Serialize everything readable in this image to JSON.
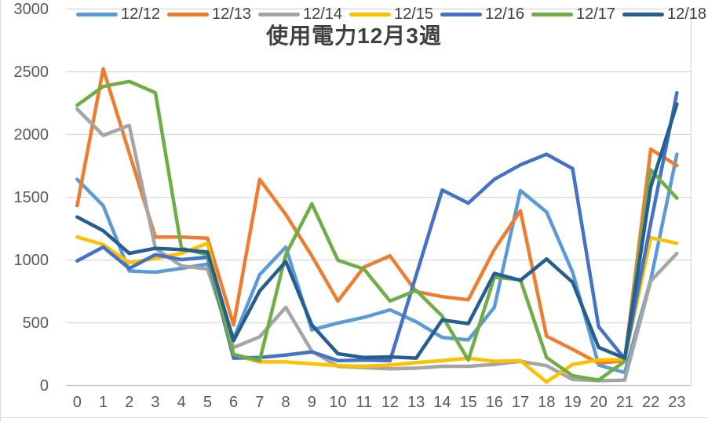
{
  "title": "使用電力12月3週",
  "chart_data": {
    "type": "line",
    "title": "使用電力12月3週",
    "xlabel": "",
    "ylabel": "",
    "categories": [
      "0",
      "1",
      "2",
      "3",
      "4",
      "5",
      "6",
      "7",
      "8",
      "9",
      "10",
      "11",
      "12",
      "13",
      "14",
      "15",
      "16",
      "17",
      "18",
      "19",
      "20",
      "21",
      "22",
      "23"
    ],
    "ylim": [
      0,
      3000
    ],
    "ytick_step": 500,
    "ytick_labels": [
      "0",
      "500",
      "1000",
      "1500",
      "2000",
      "2500",
      "3000"
    ],
    "grid": true,
    "grid_color": "#d9d9d9",
    "axis_line_color": "#c6c6c6",
    "axis_text_color": "#595959",
    "legend_position": "top",
    "series": [
      {
        "name": "12/12",
        "color": "#5B9BD5",
        "values": [
          1640,
          1430,
          910,
          900,
          930,
          965,
          370,
          880,
          1100,
          440,
          495,
          540,
          600,
          505,
          380,
          360,
          620,
          1550,
          1380,
          900,
          160,
          100,
          840,
          1840
        ]
      },
      {
        "name": "12/13",
        "color": "#ED7D31",
        "values": [
          1430,
          2520,
          1850,
          1180,
          1180,
          1170,
          480,
          1640,
          1360,
          1030,
          670,
          940,
          1030,
          745,
          705,
          680,
          1080,
          1390,
          390,
          285,
          175,
          195,
          1880,
          1750
        ]
      },
      {
        "name": "12/14",
        "color": "#A5A5A5",
        "values": [
          2200,
          1990,
          2070,
          1090,
          950,
          925,
          300,
          385,
          620,
          270,
          150,
          140,
          130,
          135,
          150,
          150,
          165,
          190,
          155,
          45,
          35,
          40,
          830,
          1050
        ]
      },
      {
        "name": "12/15",
        "color": "#FFC000",
        "values": [
          1180,
          1120,
          975,
          1010,
          1050,
          1130,
          240,
          185,
          185,
          170,
          155,
          150,
          160,
          180,
          195,
          215,
          190,
          195,
          25,
          165,
          200,
          205,
          1175,
          1130
        ]
      },
      {
        "name": "12/16",
        "color": "#4472C4",
        "values": [
          990,
          1100,
          930,
          1040,
          1000,
          1020,
          215,
          220,
          240,
          265,
          195,
          200,
          195,
          875,
          1555,
          1450,
          1640,
          1755,
          1840,
          1725,
          465,
          210,
          1290,
          2330
        ]
      },
      {
        "name": "12/17",
        "color": "#70AD47",
        "values": [
          2230,
          2380,
          2420,
          2330,
          1090,
          1040,
          245,
          195,
          1040,
          1445,
          995,
          925,
          670,
          755,
          550,
          200,
          860,
          840,
          220,
          75,
          40,
          190,
          1715,
          1490
        ]
      },
      {
        "name": "12/18",
        "color": "#255E91",
        "values": [
          1340,
          1230,
          1050,
          1090,
          1080,
          1060,
          355,
          750,
          985,
          480,
          250,
          220,
          225,
          215,
          520,
          490,
          890,
          835,
          1005,
          820,
          300,
          215,
          1580,
          2240
        ]
      }
    ]
  }
}
